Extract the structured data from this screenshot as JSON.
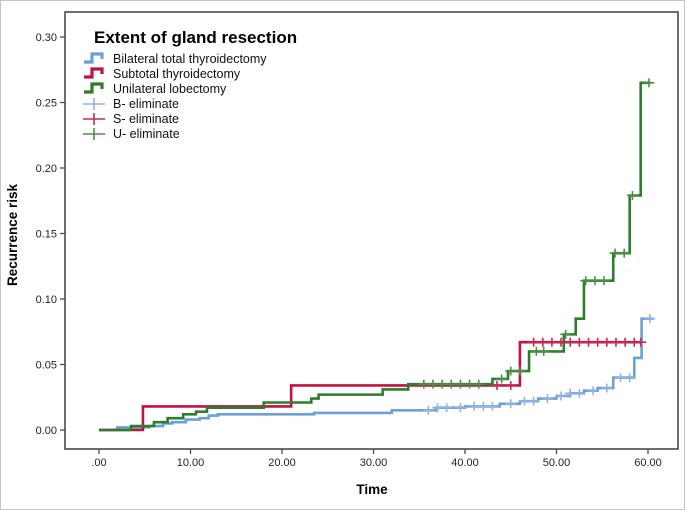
{
  "chart_data": {
    "type": "line",
    "subtype": "step-cumulative-incidence",
    "title": "Extent of gland resection",
    "xlabel": "Time",
    "ylabel": "Recurrence risk",
    "xlim": [
      0,
      60
    ],
    "ylim": [
      0,
      0.3
    ],
    "grid": false,
    "legend_position": "top-left-inside",
    "x_ticks": [
      {
        "value": 0,
        "label": ".00"
      },
      {
        "value": 10,
        "label": "10.00"
      },
      {
        "value": 20,
        "label": "20.00"
      },
      {
        "value": 30,
        "label": "30.00"
      },
      {
        "value": 40,
        "label": "40.00"
      },
      {
        "value": 50,
        "label": "50.00"
      },
      {
        "value": 60,
        "label": "60.00"
      }
    ],
    "y_ticks": [
      {
        "value": 0.0,
        "label": "0.00"
      },
      {
        "value": 0.05,
        "label": "0.05"
      },
      {
        "value": 0.1,
        "label": "0.10"
      },
      {
        "value": 0.15,
        "label": "0.15"
      },
      {
        "value": 0.2,
        "label": "0.20"
      },
      {
        "value": 0.25,
        "label": "0.25"
      },
      {
        "value": 0.3,
        "label": "0.30"
      }
    ],
    "series": [
      {
        "name": "Bilateral total thyroidectomy",
        "color": "#6B9FD8",
        "steps": [
          [
            0,
            0
          ],
          [
            2,
            0.002
          ],
          [
            5.5,
            0.003
          ],
          [
            7,
            0.005
          ],
          [
            8,
            0.006
          ],
          [
            9.5,
            0.008
          ],
          [
            11,
            0.009
          ],
          [
            12,
            0.011
          ],
          [
            13,
            0.012
          ],
          [
            23.5,
            0.013
          ],
          [
            32,
            0.015
          ],
          [
            36.8,
            0.017
          ],
          [
            40,
            0.018
          ],
          [
            43.8,
            0.02
          ],
          [
            46,
            0.022
          ],
          [
            48,
            0.024
          ],
          [
            50,
            0.026
          ],
          [
            51.5,
            0.028
          ],
          [
            53,
            0.03
          ],
          [
            54.5,
            0.032
          ],
          [
            56.2,
            0.04
          ],
          [
            58.5,
            0.055
          ],
          [
            59.3,
            0.085
          ]
        ],
        "end_time": 60.6
      },
      {
        "name": "Subtotal thyroidectomy",
        "color": "#C3123F",
        "steps": [
          [
            0,
            0
          ],
          [
            4.8,
            0.018
          ],
          [
            21,
            0.034
          ],
          [
            46,
            0.067
          ]
        ],
        "end_time": 59.3
      },
      {
        "name": "Unilateral lobectomy",
        "color": "#2E7D2E",
        "steps": [
          [
            0,
            0
          ],
          [
            3.5,
            0.003
          ],
          [
            6,
            0.006
          ],
          [
            7.5,
            0.009
          ],
          [
            9.2,
            0.012
          ],
          [
            10.6,
            0.014
          ],
          [
            11.8,
            0.017
          ],
          [
            18,
            0.021
          ],
          [
            23.2,
            0.024
          ],
          [
            24,
            0.027
          ],
          [
            31,
            0.031
          ],
          [
            33.8,
            0.035
          ],
          [
            43,
            0.039
          ],
          [
            44.7,
            0.045
          ],
          [
            47,
            0.06
          ],
          [
            50.8,
            0.073
          ],
          [
            52.1,
            0.085
          ],
          [
            53,
            0.114
          ],
          [
            56.2,
            0.135
          ],
          [
            58,
            0.179
          ],
          [
            59.2,
            0.265
          ]
        ],
        "end_time": 60.3
      }
    ],
    "censors": [
      {
        "name": "B- eliminate",
        "color": "#93B3E0",
        "series": 0,
        "times": [
          36,
          37,
          38,
          39.5,
          41,
          42,
          43,
          45,
          46.5,
          47.5,
          49,
          50.5,
          51.5,
          52.5,
          54,
          55.5,
          57,
          58,
          60.2
        ]
      },
      {
        "name": "S- eliminate",
        "color": "#C52B55",
        "series": 1,
        "times": [
          43.5,
          45,
          47.5,
          48.5,
          49.5,
          50.5,
          51.5,
          52.5,
          53.5,
          54.5,
          55.5,
          56.5,
          57.5,
          58.5,
          59.2
        ]
      },
      {
        "name": "U- eliminate",
        "color": "#4C8F4C",
        "series": 2,
        "times": [
          35.5,
          36.5,
          37.5,
          38.5,
          39.5,
          40.5,
          41.5,
          44,
          45,
          46,
          47.8,
          48.6,
          51,
          53.2,
          54.2,
          55.2,
          56.4,
          57.4,
          58.3,
          60.1
        ]
      }
    ]
  }
}
